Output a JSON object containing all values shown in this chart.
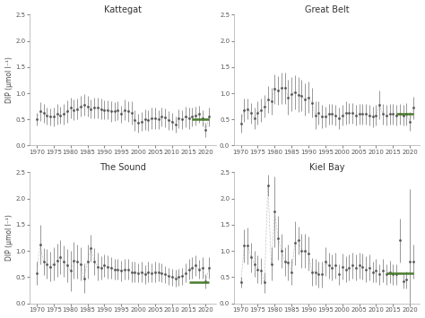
{
  "panels": [
    {
      "title": "Kattegat",
      "years": [
        1970,
        1971,
        1972,
        1973,
        1974,
        1975,
        1976,
        1977,
        1978,
        1979,
        1980,
        1981,
        1982,
        1983,
        1984,
        1985,
        1986,
        1987,
        1988,
        1989,
        1990,
        1991,
        1992,
        1993,
        1994,
        1995,
        1996,
        1997,
        1998,
        1999,
        2000,
        2001,
        2002,
        2003,
        2004,
        2005,
        2006,
        2007,
        2008,
        2009,
        2010,
        2011,
        2012,
        2013,
        2014,
        2015,
        2016,
        2017,
        2018,
        2019,
        2020,
        2021
      ],
      "values": [
        0.5,
        0.65,
        0.62,
        0.57,
        0.55,
        0.55,
        0.6,
        0.58,
        0.6,
        0.65,
        0.72,
        0.68,
        0.7,
        0.75,
        0.78,
        0.75,
        0.7,
        0.72,
        0.72,
        0.7,
        0.68,
        0.68,
        0.65,
        0.65,
        0.67,
        0.6,
        0.68,
        0.65,
        0.62,
        0.48,
        0.43,
        0.46,
        0.5,
        0.48,
        0.52,
        0.52,
        0.5,
        0.55,
        0.53,
        0.48,
        0.46,
        0.4,
        0.52,
        0.5,
        0.55,
        0.52,
        0.55,
        0.57,
        0.6,
        0.52,
        0.3,
        0.55
      ],
      "errors": [
        0.12,
        0.18,
        0.18,
        0.16,
        0.16,
        0.18,
        0.2,
        0.16,
        0.2,
        0.22,
        0.2,
        0.2,
        0.2,
        0.2,
        0.2,
        0.2,
        0.18,
        0.2,
        0.2,
        0.2,
        0.18,
        0.18,
        0.2,
        0.18,
        0.18,
        0.16,
        0.2,
        0.2,
        0.22,
        0.2,
        0.18,
        0.18,
        0.2,
        0.2,
        0.2,
        0.2,
        0.18,
        0.18,
        0.18,
        0.18,
        0.16,
        0.16,
        0.18,
        0.18,
        0.2,
        0.2,
        0.18,
        0.18,
        0.16,
        0.16,
        0.13,
        0.18
      ],
      "threshold": 0.5,
      "threshold_x_start": 2016,
      "threshold_x_end": 2021,
      "has_line": true,
      "line_years": [
        1970,
        1971,
        1972,
        1973,
        1974,
        1975,
        1976,
        1977,
        1978,
        1979,
        1980,
        1981,
        1982,
        1983,
        1984,
        1985,
        1986,
        1987,
        1988,
        1989,
        1990,
        1991,
        1992,
        1993,
        1994,
        1995,
        1996,
        1997,
        1998,
        1999,
        2000,
        2001,
        2002,
        2003,
        2004,
        2005,
        2006,
        2007,
        2008,
        2009,
        2010,
        2011,
        2012,
        2013,
        2014,
        2015,
        2016,
        2017,
        2018,
        2019,
        2020,
        2021
      ],
      "line_values": [
        0.5,
        0.65,
        0.62,
        0.57,
        0.55,
        0.55,
        0.6,
        0.58,
        0.6,
        0.65,
        0.72,
        0.68,
        0.7,
        0.75,
        0.78,
        0.75,
        0.7,
        0.72,
        0.72,
        0.7,
        0.68,
        0.68,
        0.65,
        0.65,
        0.67,
        0.6,
        0.68,
        0.65,
        0.62,
        0.48,
        0.43,
        0.46,
        0.5,
        0.48,
        0.52,
        0.52,
        0.5,
        0.55,
        0.53,
        0.48,
        0.46,
        0.4,
        0.52,
        0.5,
        0.55,
        0.52,
        0.55,
        0.57,
        0.6,
        0.52,
        0.3,
        0.55
      ]
    },
    {
      "title": "Great Belt",
      "years": [
        1970,
        1971,
        1972,
        1973,
        1974,
        1975,
        1976,
        1977,
        1978,
        1979,
        1980,
        1981,
        1982,
        1983,
        1984,
        1985,
        1986,
        1987,
        1988,
        1989,
        1990,
        1991,
        1992,
        1993,
        1994,
        1995,
        1996,
        1997,
        1998,
        1999,
        2000,
        2001,
        2002,
        2003,
        2004,
        2005,
        2006,
        2007,
        2008,
        2009,
        2010,
        2011,
        2012,
        2013,
        2014,
        2015,
        2016,
        2017,
        2018,
        2019,
        2020,
        2021
      ],
      "values": [
        0.42,
        0.68,
        0.7,
        0.62,
        0.52,
        0.62,
        0.68,
        0.75,
        0.88,
        0.85,
        1.08,
        1.05,
        1.1,
        1.1,
        0.92,
        0.98,
        1.02,
        0.97,
        0.95,
        0.88,
        0.92,
        0.82,
        0.58,
        0.62,
        0.55,
        0.55,
        0.6,
        0.6,
        0.58,
        0.52,
        0.58,
        0.62,
        0.62,
        0.62,
        0.58,
        0.6,
        0.6,
        0.6,
        0.58,
        0.55,
        0.58,
        0.78,
        0.6,
        0.58,
        0.6,
        0.6,
        0.58,
        0.6,
        0.58,
        0.6,
        0.46,
        0.72
      ],
      "errors": [
        0.18,
        0.22,
        0.2,
        0.2,
        0.2,
        0.22,
        0.22,
        0.22,
        0.26,
        0.26,
        0.28,
        0.28,
        0.3,
        0.3,
        0.33,
        0.33,
        0.33,
        0.33,
        0.3,
        0.3,
        0.3,
        0.28,
        0.26,
        0.22,
        0.22,
        0.2,
        0.2,
        0.2,
        0.2,
        0.2,
        0.2,
        0.22,
        0.2,
        0.2,
        0.2,
        0.2,
        0.2,
        0.2,
        0.2,
        0.2,
        0.2,
        0.28,
        0.2,
        0.2,
        0.2,
        0.2,
        0.2,
        0.2,
        0.2,
        0.22,
        0.18,
        0.22
      ],
      "threshold": 0.6,
      "threshold_x_start": 2016,
      "threshold_x_end": 2021,
      "has_line": true,
      "line_years": [
        1970,
        1971,
        1972,
        1973,
        1974,
        1975,
        1976,
        1977,
        1978,
        1979,
        1980,
        1981,
        1982,
        1983,
        1984,
        1985,
        1986,
        1987,
        1988,
        1989,
        1990,
        1991,
        1992,
        1993,
        1994,
        1995,
        1996,
        1997,
        1998,
        1999,
        2000,
        2001,
        2002,
        2003,
        2004,
        2005,
        2006,
        2007,
        2008,
        2009,
        2010,
        2011,
        2012,
        2013,
        2014,
        2015,
        2016,
        2017,
        2018,
        2019,
        2020,
        2021
      ],
      "line_values": [
        0.42,
        0.68,
        0.7,
        0.62,
        0.52,
        0.62,
        0.68,
        0.75,
        0.88,
        0.85,
        1.08,
        1.05,
        1.1,
        1.1,
        0.92,
        0.98,
        1.02,
        0.97,
        0.95,
        0.88,
        0.92,
        0.82,
        0.58,
        0.62,
        0.55,
        0.55,
        0.6,
        0.6,
        0.58,
        0.52,
        0.58,
        0.62,
        0.62,
        0.62,
        0.58,
        0.6,
        0.6,
        0.6,
        0.58,
        0.55,
        0.58,
        0.78,
        0.6,
        0.58,
        0.6,
        0.6,
        0.58,
        0.6,
        0.58,
        0.6,
        0.46,
        0.72
      ]
    },
    {
      "title": "The Sound",
      "years": [
        1970,
        1971,
        1972,
        1973,
        1974,
        1975,
        1976,
        1977,
        1978,
        1979,
        1980,
        1981,
        1982,
        1983,
        1984,
        1985,
        1986,
        1987,
        1988,
        1989,
        1990,
        1991,
        1992,
        1993,
        1994,
        1995,
        1996,
        1997,
        1998,
        1999,
        2000,
        2001,
        2002,
        2003,
        2004,
        2005,
        2006,
        2007,
        2008,
        2009,
        2010,
        2011,
        2012,
        2013,
        2014,
        2015,
        2016,
        2017,
        2018,
        2019,
        2020,
        2021
      ],
      "values": [
        0.58,
        1.12,
        0.8,
        0.75,
        0.7,
        0.75,
        0.82,
        0.88,
        0.8,
        0.72,
        0.62,
        0.82,
        0.8,
        0.75,
        0.48,
        0.8,
        1.05,
        0.8,
        0.7,
        0.68,
        0.72,
        0.7,
        0.68,
        0.65,
        0.65,
        0.62,
        0.65,
        0.65,
        0.6,
        0.6,
        0.58,
        0.6,
        0.55,
        0.6,
        0.58,
        0.6,
        0.6,
        0.58,
        0.55,
        0.52,
        0.5,
        0.48,
        0.5,
        0.52,
        0.58,
        0.65,
        0.68,
        0.72,
        0.65,
        0.68,
        0.42,
        0.68
      ],
      "errors": [
        0.22,
        0.38,
        0.26,
        0.28,
        0.28,
        0.32,
        0.32,
        0.32,
        0.3,
        0.32,
        0.38,
        0.35,
        0.32,
        0.32,
        0.28,
        0.32,
        0.26,
        0.26,
        0.26,
        0.22,
        0.22,
        0.22,
        0.2,
        0.2,
        0.2,
        0.2,
        0.2,
        0.2,
        0.2,
        0.2,
        0.18,
        0.2,
        0.18,
        0.2,
        0.18,
        0.2,
        0.18,
        0.18,
        0.16,
        0.16,
        0.16,
        0.16,
        0.16,
        0.16,
        0.18,
        0.2,
        0.2,
        0.2,
        0.18,
        0.2,
        0.13,
        0.2
      ],
      "threshold": 0.4,
      "threshold_x_start": 2015,
      "threshold_x_end": 2021,
      "has_line": true,
      "line_years": [
        1970,
        1971,
        1972,
        1973,
        1974,
        1975,
        1976,
        1977,
        1978,
        1979,
        1980,
        1981,
        1982,
        1983,
        1984,
        1985,
        1986,
        1987,
        1988,
        1989,
        1990,
        1991,
        1992,
        1993,
        1994,
        1995,
        1996,
        1997,
        1998,
        1999,
        2000,
        2001,
        2002,
        2003,
        2004,
        2005,
        2006,
        2007,
        2008,
        2009,
        2010,
        2011,
        2012,
        2013,
        2014,
        2015,
        2016,
        2017,
        2018,
        2019,
        2020,
        2021
      ],
      "line_values": [
        0.58,
        1.12,
        0.8,
        0.75,
        0.7,
        0.75,
        0.82,
        0.88,
        0.8,
        0.72,
        0.62,
        0.82,
        0.8,
        0.75,
        0.48,
        0.8,
        1.05,
        0.8,
        0.7,
        0.68,
        0.72,
        0.7,
        0.68,
        0.65,
        0.65,
        0.62,
        0.65,
        0.65,
        0.6,
        0.6,
        0.58,
        0.6,
        0.55,
        0.6,
        0.58,
        0.6,
        0.6,
        0.58,
        0.55,
        0.52,
        0.5,
        0.48,
        0.5,
        0.52,
        0.58,
        0.65,
        0.68,
        0.72,
        0.65,
        0.68,
        0.42,
        0.68
      ]
    },
    {
      "title": "Kiel Bay",
      "years": [
        1970,
        1971,
        1972,
        1973,
        1974,
        1975,
        1976,
        1977,
        1978,
        1979,
        1980,
        1981,
        1982,
        1983,
        1984,
        1985,
        1986,
        1987,
        1988,
        1989,
        1990,
        1991,
        1992,
        1993,
        1994,
        1995,
        1996,
        1997,
        1998,
        1999,
        2000,
        2001,
        2002,
        2003,
        2004,
        2005,
        2006,
        2007,
        2008,
        2009,
        2010,
        2011,
        2012,
        2013,
        2014,
        2015,
        2016,
        2017,
        2018,
        2019,
        2020,
        2021
      ],
      "values": [
        0.4,
        1.1,
        1.1,
        0.88,
        0.75,
        0.65,
        0.62,
        0.4,
        2.25,
        0.75,
        1.75,
        1.25,
        1.0,
        0.8,
        0.78,
        0.6,
        1.15,
        1.2,
        1.0,
        1.0,
        0.95,
        0.6,
        0.6,
        0.55,
        0.55,
        0.8,
        0.72,
        0.68,
        0.72,
        0.55,
        0.7,
        0.65,
        0.68,
        0.72,
        0.68,
        0.72,
        0.7,
        0.65,
        0.68,
        0.6,
        0.62,
        0.55,
        0.62,
        0.55,
        0.6,
        0.55,
        0.55,
        1.2,
        0.42,
        0.45,
        0.8,
        0.8
      ],
      "errors": [
        0.1,
        0.32,
        0.35,
        0.28,
        0.25,
        0.27,
        0.25,
        0.2,
        0.2,
        0.32,
        0.68,
        0.42,
        0.32,
        0.27,
        0.35,
        0.25,
        0.42,
        0.27,
        0.32,
        0.32,
        0.32,
        0.27,
        0.25,
        0.25,
        0.25,
        0.27,
        0.25,
        0.25,
        0.25,
        0.2,
        0.25,
        0.25,
        0.25,
        0.25,
        0.25,
        0.25,
        0.25,
        0.25,
        0.25,
        0.2,
        0.22,
        0.2,
        0.22,
        0.2,
        0.22,
        0.2,
        0.2,
        0.42,
        0.13,
        0.16,
        1.38,
        0.32
      ],
      "threshold": 0.58,
      "threshold_x_start": 2013,
      "threshold_x_end": 2021,
      "has_line": true,
      "line_years": [
        1970,
        1971,
        1972,
        1973,
        1974,
        1975,
        1976,
        1977,
        1978,
        1979,
        1980,
        1981,
        1982,
        1983,
        1984,
        1985,
        1986,
        1987,
        1988,
        1989,
        1990,
        1991,
        1992,
        1993,
        1994,
        1995,
        1996,
        1997
      ],
      "line_values": [
        0.4,
        1.1,
        1.1,
        0.88,
        0.75,
        0.65,
        0.62,
        0.4,
        2.25,
        0.75,
        1.75,
        1.25,
        1.0,
        0.8,
        0.78,
        0.6,
        1.15,
        1.2,
        1.0,
        1.0,
        0.95,
        0.6,
        0.6,
        0.55,
        0.55,
        0.8,
        0.72,
        0.68
      ]
    }
  ],
  "bg_color": "#ffffff",
  "marker_color": "#555555",
  "error_color": "#888888",
  "line_color": "#aaaaaa",
  "threshold_color": "#4a7c2f",
  "ylabel": "DIP (μmol l⁻¹)",
  "ylim": [
    0.0,
    2.5
  ],
  "yticks": [
    0.0,
    0.5,
    1.0,
    1.5,
    2.0,
    2.5
  ],
  "xlim": [
    1968,
    2023
  ],
  "xticks": [
    1970,
    1975,
    1980,
    1985,
    1990,
    1995,
    2000,
    2005,
    2010,
    2015,
    2020
  ]
}
